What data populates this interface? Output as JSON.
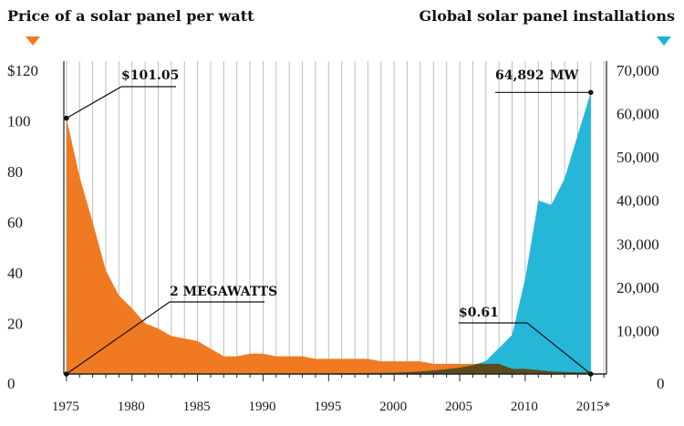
{
  "chart_data": {
    "type": "area",
    "left_title": "Price of a solar panel per watt",
    "right_title": "Global solar panel installations",
    "x_tick_labels": [
      "1975",
      "1980",
      "1985",
      "1990",
      "1995",
      "2000",
      "2005",
      "2010",
      "2015*"
    ],
    "y_left": {
      "ticks": [
        "$120",
        "100",
        "80",
        "60",
        "40",
        "20",
        "0"
      ],
      "range": [
        0,
        120
      ]
    },
    "y_right": {
      "ticks": [
        "70,000",
        "60,000",
        "50,000",
        "40,000",
        "30,000",
        "20,000",
        "10,000",
        "0"
      ],
      "range": [
        0,
        70000
      ]
    },
    "grid": "vertical lines per year",
    "series": [
      {
        "name": "Price of a solar panel per watt",
        "axis": "left",
        "color": "#f07a22",
        "x": [
          1975,
          1976,
          1977,
          1978,
          1979,
          1980,
          1981,
          1982,
          1983,
          1984,
          1985,
          1986,
          1987,
          1988,
          1989,
          1990,
          1991,
          1992,
          1993,
          1994,
          1995,
          1996,
          1997,
          1998,
          1999,
          2000,
          2001,
          2002,
          2003,
          2004,
          2005,
          2006,
          2007,
          2008,
          2009,
          2010,
          2011,
          2012,
          2013,
          2014,
          2015
        ],
        "y": [
          101.05,
          78,
          60,
          41,
          31,
          26,
          20,
          18,
          15,
          14,
          13,
          10,
          7,
          7,
          8,
          8,
          7,
          7,
          7,
          6,
          6,
          6,
          6,
          6,
          5,
          5,
          5,
          5,
          4,
          4,
          4,
          4,
          4,
          4,
          2,
          2,
          1.5,
          1,
          0.8,
          0.7,
          0.61
        ]
      },
      {
        "name": "Global solar panel installations",
        "axis": "right",
        "color": "#1ab3d6",
        "x": [
          1975,
          1980,
          1985,
          1990,
          1995,
          2000,
          2002,
          2004,
          2005,
          2006,
          2007,
          2008,
          2009,
          2010,
          2011,
          2012,
          2013,
          2014,
          2015
        ],
        "y": [
          2,
          20,
          50,
          100,
          150,
          300,
          550,
          1100,
          1500,
          2000,
          3000,
          6000,
          9000,
          22000,
          40000,
          39000,
          45000,
          55000,
          64892
        ]
      }
    ],
    "overlap_color": "#5a4a1e",
    "annotations": {
      "price_start": "$101.05",
      "install_end": "64,892",
      "install_end_unit": "MW",
      "install_start": "2 MEGAWATTS",
      "price_end": "$0.61"
    },
    "legend_markers": {
      "left_color": "#f07a22",
      "right_color": "#1ab3d6"
    }
  }
}
